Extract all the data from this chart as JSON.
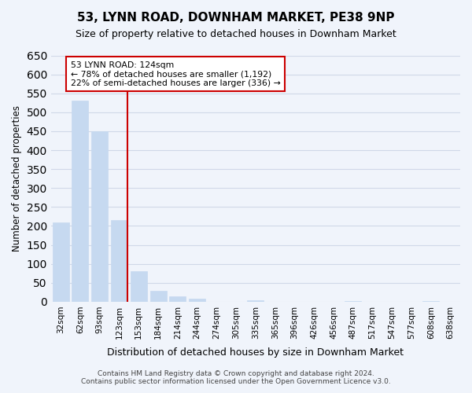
{
  "title": "53, LYNN ROAD, DOWNHAM MARKET, PE38 9NP",
  "subtitle": "Size of property relative to detached houses in Downham Market",
  "xlabel": "Distribution of detached houses by size in Downham Market",
  "ylabel": "Number of detached properties",
  "bar_labels": [
    "32sqm",
    "62sqm",
    "93sqm",
    "123sqm",
    "153sqm",
    "184sqm",
    "214sqm",
    "244sqm",
    "274sqm",
    "305sqm",
    "335sqm",
    "365sqm",
    "396sqm",
    "426sqm",
    "456sqm",
    "487sqm",
    "517sqm",
    "547sqm",
    "577sqm",
    "608sqm",
    "638sqm"
  ],
  "bar_values": [
    210,
    530,
    450,
    215,
    80,
    28,
    15,
    9,
    0,
    0,
    3,
    0,
    0,
    0,
    0,
    1,
    0,
    0,
    0,
    1,
    0
  ],
  "bar_color": "#c6d9f0",
  "bar_edge_color": "#c6d9f0",
  "grid_color": "#d0d8e8",
  "background_color": "#f0f4fb",
  "vline_index": 3,
  "vline_color": "#cc0000",
  "annotation_line1": "53 LYNN ROAD: 124sqm",
  "annotation_line2": "← 78% of detached houses are smaller (1,192)",
  "annotation_line3": "22% of semi-detached houses are larger (336) →",
  "annotation_box_color": "#ffffff",
  "annotation_box_edge": "#cc0000",
  "ylim": [
    0,
    650
  ],
  "yticks": [
    0,
    50,
    100,
    150,
    200,
    250,
    300,
    350,
    400,
    450,
    500,
    550,
    600,
    650
  ],
  "footer_line1": "Contains HM Land Registry data © Crown copyright and database right 2024.",
  "footer_line2": "Contains public sector information licensed under the Open Government Licence v3.0."
}
